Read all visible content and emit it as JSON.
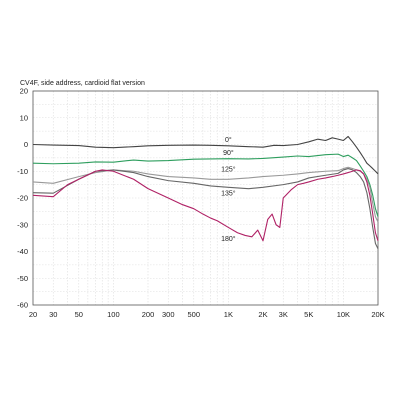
{
  "chart_data": {
    "type": "line",
    "title": "CV4F, side address, cardioid flat version",
    "xlabel": "",
    "ylabel": "",
    "x_scale": "log",
    "xlim": [
      20,
      20000
    ],
    "ylim": [
      -60,
      20
    ],
    "grid": true,
    "x_ticks": [
      {
        "value": 20,
        "label": "20"
      },
      {
        "value": 30,
        "label": "30"
      },
      {
        "value": 50,
        "label": "50"
      },
      {
        "value": 100,
        "label": "100"
      },
      {
        "value": 200,
        "label": "200"
      },
      {
        "value": 300,
        "label": "300"
      },
      {
        "value": 500,
        "label": "500"
      },
      {
        "value": 1000,
        "label": "1K"
      },
      {
        "value": 2000,
        "label": "2K"
      },
      {
        "value": 3000,
        "label": "3K"
      },
      {
        "value": 5000,
        "label": "5K"
      },
      {
        "value": 10000,
        "label": "10K"
      },
      {
        "value": 20000,
        "label": "20K"
      }
    ],
    "y_ticks": [
      {
        "value": 20,
        "label": "20"
      },
      {
        "value": 10,
        "label": "10"
      },
      {
        "value": 0,
        "label": "0"
      },
      {
        "value": -10,
        "label": "-10"
      },
      {
        "value": -20,
        "label": "-20"
      },
      {
        "value": -30,
        "label": "-30"
      },
      {
        "value": -40,
        "label": "-40"
      },
      {
        "value": -50,
        "label": "-50"
      },
      {
        "value": -60,
        "label": "-60"
      }
    ],
    "series": [
      {
        "name": "0°",
        "color": "#444444",
        "label_at": [
          1000,
          1
        ],
        "points": [
          [
            20,
            0
          ],
          [
            30,
            -0.2
          ],
          [
            50,
            -0.4
          ],
          [
            70,
            -1
          ],
          [
            100,
            -1.2
          ],
          [
            150,
            -0.8
          ],
          [
            200,
            -0.5
          ],
          [
            300,
            -0.3
          ],
          [
            500,
            -0.2
          ],
          [
            700,
            -0.3
          ],
          [
            1000,
            -0.5
          ],
          [
            1500,
            -0.8
          ],
          [
            2000,
            -1
          ],
          [
            2500,
            -0.3
          ],
          [
            3000,
            -0.4
          ],
          [
            4000,
            0
          ],
          [
            5000,
            1
          ],
          [
            6000,
            2
          ],
          [
            7000,
            1.5
          ],
          [
            8000,
            2.5
          ],
          [
            9000,
            2
          ],
          [
            10000,
            1.5
          ],
          [
            11000,
            3
          ],
          [
            12000,
            1
          ],
          [
            13000,
            -1
          ],
          [
            14000,
            -3
          ],
          [
            15000,
            -5
          ],
          [
            16000,
            -7
          ],
          [
            17000,
            -8
          ],
          [
            18000,
            -9
          ],
          [
            19000,
            -10
          ],
          [
            20000,
            -11
          ]
        ]
      },
      {
        "name": "90°",
        "color": "#2e9e5e",
        "label_at": [
          1000,
          -4
        ],
        "points": [
          [
            20,
            -7
          ],
          [
            30,
            -7.2
          ],
          [
            50,
            -7
          ],
          [
            70,
            -6.5
          ],
          [
            100,
            -6.6
          ],
          [
            150,
            -5.8
          ],
          [
            200,
            -6.2
          ],
          [
            300,
            -6
          ],
          [
            500,
            -5.5
          ],
          [
            700,
            -5.4
          ],
          [
            1000,
            -5.3
          ],
          [
            1500,
            -5.4
          ],
          [
            2000,
            -5.2
          ],
          [
            3000,
            -4.7
          ],
          [
            4000,
            -4.3
          ],
          [
            5000,
            -4.5
          ],
          [
            7000,
            -3.8
          ],
          [
            9000,
            -3.6
          ],
          [
            10000,
            -4.5
          ],
          [
            11000,
            -4
          ],
          [
            12000,
            -5
          ],
          [
            13000,
            -6
          ],
          [
            14000,
            -8
          ],
          [
            15000,
            -10
          ],
          [
            16000,
            -12
          ],
          [
            17000,
            -15
          ],
          [
            18000,
            -19
          ],
          [
            19000,
            -24
          ],
          [
            20000,
            -27
          ]
        ]
      },
      {
        "name": "125°",
        "color": "#999999",
        "label_at": [
          1000,
          -10
        ],
        "points": [
          [
            20,
            -14
          ],
          [
            30,
            -14.5
          ],
          [
            50,
            -12
          ],
          [
            70,
            -10.5
          ],
          [
            100,
            -9.5
          ],
          [
            150,
            -10
          ],
          [
            200,
            -11
          ],
          [
            300,
            -12
          ],
          [
            500,
            -12.5
          ],
          [
            700,
            -13
          ],
          [
            1000,
            -13
          ],
          [
            1500,
            -12.5
          ],
          [
            2000,
            -12
          ],
          [
            3000,
            -11.5
          ],
          [
            4000,
            -11
          ],
          [
            5000,
            -10.5
          ],
          [
            7000,
            -10
          ],
          [
            9000,
            -9.8
          ],
          [
            10000,
            -9
          ],
          [
            11000,
            -8.5
          ],
          [
            12000,
            -9
          ],
          [
            13000,
            -9.5
          ],
          [
            14000,
            -10
          ],
          [
            15000,
            -11
          ],
          [
            16000,
            -13
          ],
          [
            17000,
            -16
          ],
          [
            18000,
            -22
          ],
          [
            19000,
            -27
          ],
          [
            20000,
            -29
          ]
        ]
      },
      {
        "name": "135°",
        "color": "#666666",
        "label_at": [
          1000,
          -19
        ],
        "points": [
          [
            20,
            -18
          ],
          [
            30,
            -18.2
          ],
          [
            50,
            -13
          ],
          [
            70,
            -10
          ],
          [
            100,
            -9.5
          ],
          [
            150,
            -10.5
          ],
          [
            200,
            -12
          ],
          [
            300,
            -13.5
          ],
          [
            500,
            -14.5
          ],
          [
            700,
            -15.5
          ],
          [
            1000,
            -16
          ],
          [
            1500,
            -16.5
          ],
          [
            2000,
            -16
          ],
          [
            3000,
            -15
          ],
          [
            4000,
            -14
          ],
          [
            5000,
            -12.5
          ],
          [
            7000,
            -11.5
          ],
          [
            9000,
            -10.8
          ],
          [
            10000,
            -9.5
          ],
          [
            11000,
            -9
          ],
          [
            12000,
            -9.5
          ],
          [
            13000,
            -10.5
          ],
          [
            14000,
            -12
          ],
          [
            15000,
            -14
          ],
          [
            16000,
            -18
          ],
          [
            17000,
            -24
          ],
          [
            18000,
            -31
          ],
          [
            19000,
            -37
          ],
          [
            20000,
            -39
          ]
        ]
      },
      {
        "name": "180°",
        "color": "#b02266",
        "label_at": [
          1000,
          -36
        ],
        "points": [
          [
            20,
            -19
          ],
          [
            30,
            -19.5
          ],
          [
            40,
            -15
          ],
          [
            50,
            -13
          ],
          [
            70,
            -10
          ],
          [
            80,
            -9.5
          ],
          [
            100,
            -10
          ],
          [
            150,
            -13
          ],
          [
            200,
            -16.5
          ],
          [
            300,
            -20
          ],
          [
            400,
            -22.5
          ],
          [
            500,
            -24
          ],
          [
            600,
            -26
          ],
          [
            700,
            -27.5
          ],
          [
            800,
            -28.5
          ],
          [
            1000,
            -31
          ],
          [
            1200,
            -33
          ],
          [
            1400,
            -34
          ],
          [
            1600,
            -34.5
          ],
          [
            1800,
            -32
          ],
          [
            2000,
            -36
          ],
          [
            2200,
            -28
          ],
          [
            2400,
            -26
          ],
          [
            2600,
            -30
          ],
          [
            2800,
            -31
          ],
          [
            3000,
            -20
          ],
          [
            3500,
            -17
          ],
          [
            4000,
            -15
          ],
          [
            4500,
            -14.5
          ],
          [
            5000,
            -14
          ],
          [
            6000,
            -13
          ],
          [
            7000,
            -12.5
          ],
          [
            8000,
            -12
          ],
          [
            9000,
            -11.5
          ],
          [
            10000,
            -11
          ],
          [
            11000,
            -10.5
          ],
          [
            12000,
            -10
          ],
          [
            13000,
            -9.5
          ],
          [
            14000,
            -9.8
          ],
          [
            15000,
            -11
          ],
          [
            16000,
            -14
          ],
          [
            17000,
            -19
          ],
          [
            18000,
            -26
          ],
          [
            19000,
            -33
          ],
          [
            20000,
            -36
          ]
        ]
      }
    ]
  }
}
